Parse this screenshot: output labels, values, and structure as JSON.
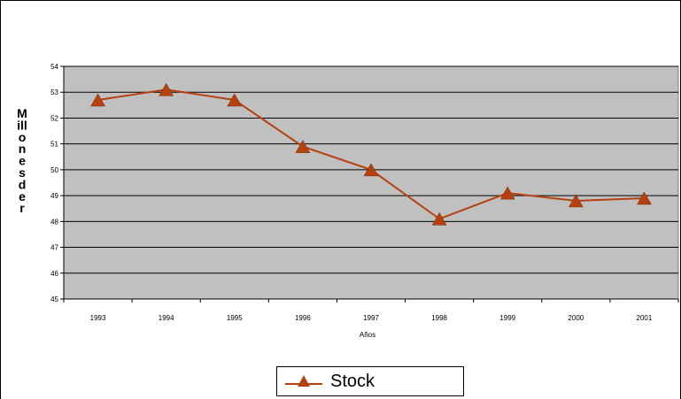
{
  "chart_data": {
    "type": "line",
    "categories": [
      "1993",
      "1994",
      "1995",
      "1996",
      "1997",
      "1998",
      "1999",
      "2000",
      "2001"
    ],
    "series": [
      {
        "name": "Stock",
        "values": [
          52.7,
          53.1,
          52.7,
          50.9,
          50.0,
          48.1,
          49.1,
          48.8,
          48.9
        ],
        "color": "#b5410f",
        "marker": "triangle"
      }
    ],
    "y_ticks": [
      "54",
      "53",
      "52",
      "51",
      "50",
      "49",
      "48",
      "47",
      "46",
      "45"
    ],
    "ylim": [
      45,
      54
    ],
    "xlabel": "Años",
    "ylabel": "Millones de r",
    "ylabel_letters": [
      "M",
      "ill",
      "o",
      "n",
      "e",
      "s",
      "d",
      "e",
      "r"
    ],
    "grid": true,
    "plot_background": "#c0c0c0",
    "legend_position": "bottom"
  }
}
